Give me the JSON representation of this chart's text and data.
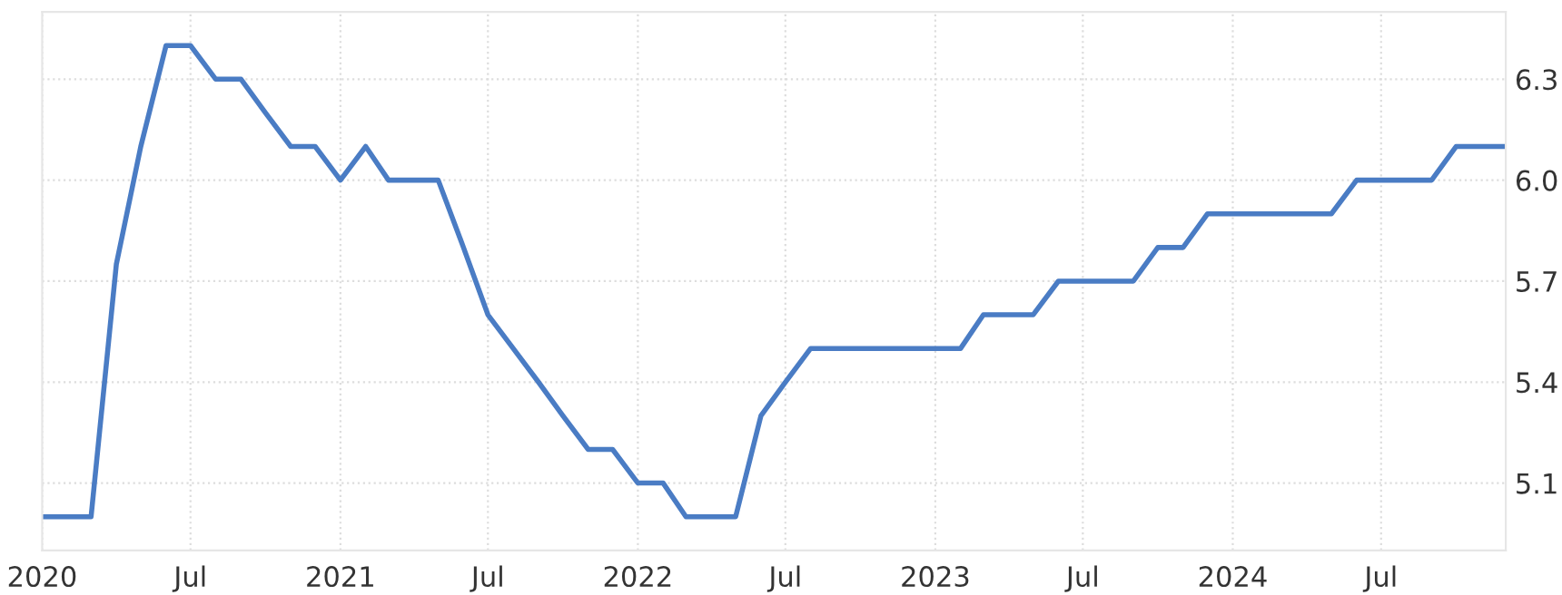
{
  "chart_data": {
    "type": "line",
    "x": [
      "2020-01",
      "2020-02",
      "2020-03",
      "2020-04",
      "2020-05",
      "2020-06",
      "2020-07",
      "2020-08",
      "2020-09",
      "2020-10",
      "2020-11",
      "2020-12",
      "2021-01",
      "2021-02",
      "2021-03",
      "2021-04",
      "2021-05",
      "2021-06",
      "2021-07",
      "2021-08",
      "2021-09",
      "2021-10",
      "2021-11",
      "2021-12",
      "2022-01",
      "2022-02",
      "2022-03",
      "2022-04",
      "2022-05",
      "2022-06",
      "2022-07",
      "2022-08",
      "2022-09",
      "2022-10",
      "2022-11",
      "2022-12",
      "2023-01",
      "2023-02",
      "2023-03",
      "2023-04",
      "2023-05",
      "2023-06",
      "2023-07",
      "2023-08",
      "2023-09",
      "2023-10",
      "2023-11",
      "2023-12",
      "2024-01",
      "2024-02",
      "2024-03",
      "2024-04",
      "2024-05",
      "2024-06",
      "2024-07",
      "2024-08",
      "2024-09",
      "2024-10",
      "2024-11",
      "2024-12"
    ],
    "series": [
      {
        "color": "#4a7cc4",
        "values": [
          5.0,
          5.0,
          5.0,
          5.75,
          6.1,
          6.4,
          6.4,
          6.3,
          6.3,
          6.2,
          6.1,
          6.1,
          6.0,
          6.1,
          6.0,
          6.0,
          6.0,
          5.8,
          5.6,
          5.5,
          5.4,
          5.3,
          5.2,
          5.2,
          5.1,
          5.1,
          5.0,
          5.0,
          5.0,
          5.3,
          5.4,
          5.5,
          5.5,
          5.5,
          5.5,
          5.5,
          5.5,
          5.5,
          5.6,
          5.6,
          5.6,
          5.7,
          5.7,
          5.7,
          5.7,
          5.8,
          5.8,
          5.9,
          5.9,
          5.9,
          5.9,
          5.9,
          5.9,
          6.0,
          6.0,
          6.0,
          6.0,
          6.1,
          6.1,
          6.1
        ]
      }
    ],
    "xlim": [
      "2020-01",
      "2024-12"
    ],
    "xticks": [
      {
        "value": "2020-01",
        "label": "2020"
      },
      {
        "value": "2020-07",
        "label": "Jul"
      },
      {
        "value": "2021-01",
        "label": "2021"
      },
      {
        "value": "2021-07",
        "label": "Jul"
      },
      {
        "value": "2022-01",
        "label": "2022"
      },
      {
        "value": "2022-07",
        "label": "Jul"
      },
      {
        "value": "2023-01",
        "label": "2023"
      },
      {
        "value": "2023-07",
        "label": "Jul"
      },
      {
        "value": "2024-01",
        "label": "2024"
      },
      {
        "value": "2024-07",
        "label": "Jul"
      }
    ],
    "ylim": [
      4.9,
      6.5
    ],
    "yticks": [
      5.1,
      5.4,
      5.7,
      {
        "value": 6,
        "label": "6.0"
      },
      6.3
    ],
    "grid": true,
    "marker": "none",
    "line_style": "solid"
  }
}
